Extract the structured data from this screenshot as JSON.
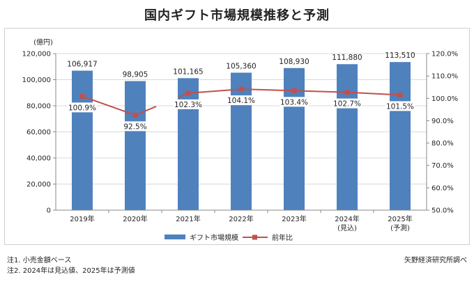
{
  "title": "国内ギフト市場規模推移と予測",
  "notes": {
    "note1": "注1. 小売金額ベース",
    "note2": "注2. 2024年は見込値、2025年は予測値",
    "source": "矢野経済研究所調べ"
  },
  "colors": {
    "bar": "#4f81bd",
    "line": "#c0504d",
    "grid": "#d9d9d9"
  },
  "chart_data": {
    "type": "bar",
    "categories": [
      {
        "line1": "2019年",
        "line2": ""
      },
      {
        "line1": "2020年",
        "line2": ""
      },
      {
        "line1": "2021年",
        "line2": ""
      },
      {
        "line1": "2022年",
        "line2": ""
      },
      {
        "line1": "2023年",
        "line2": ""
      },
      {
        "line1": "2024年",
        "line2": "(見込)"
      },
      {
        "line1": "2025年",
        "line2": "(予測)"
      }
    ],
    "y_unit_label": "(億円)",
    "ylim": [
      0,
      120000
    ],
    "y_ticks": [
      "0",
      "20,000",
      "40,000",
      "60,000",
      "80,000",
      "100,000",
      "120,000"
    ],
    "y2lim": [
      50,
      120
    ],
    "y2_ticks": [
      "50.0%",
      "60.0%",
      "70.0%",
      "80.0%",
      "90.0%",
      "100.0%",
      "110.0%",
      "120.0%"
    ],
    "series": [
      {
        "name": "ギフト市場規模",
        "kind": "bar",
        "axis": "left",
        "values": [
          106917,
          98905,
          101165,
          105360,
          108930,
          111880,
          113510
        ],
        "labels": [
          "106,917",
          "98,905",
          "101,165",
          "105,360",
          "108,930",
          "111,880",
          "113,510"
        ]
      },
      {
        "name": "前年比",
        "kind": "line",
        "axis": "right",
        "values": [
          100.9,
          92.5,
          102.3,
          104.1,
          103.4,
          102.7,
          101.5
        ],
        "labels": [
          "100.9%",
          "92.5%",
          "102.3%",
          "104.1%",
          "103.4%",
          "102.7%",
          "101.5%"
        ]
      }
    ],
    "grid": true,
    "legend": "bottom"
  }
}
